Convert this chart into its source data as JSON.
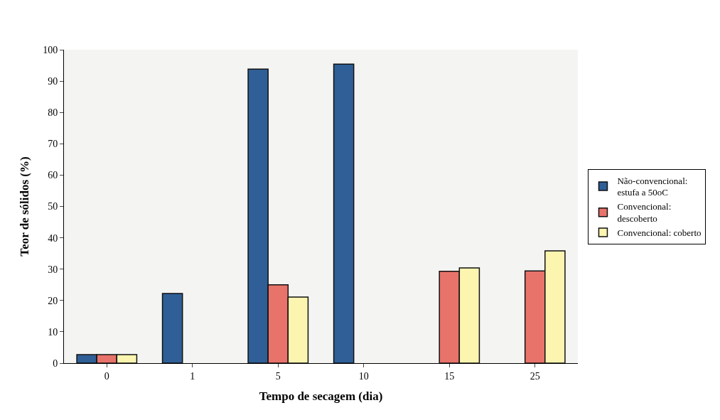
{
  "chart_data": {
    "type": "bar",
    "xlabel": "Tempo de secagem (dia)",
    "ylabel": "Teor de sólidos (%)",
    "categories": [
      "0",
      "1",
      "5",
      "10",
      "15",
      "25"
    ],
    "series": [
      {
        "name": "Não-convencional: estufa a 50oC",
        "color": "#2f5f96",
        "values": [
          2.7,
          22.2,
          93.8,
          95.4,
          null,
          null
        ]
      },
      {
        "name": "Convencional: descoberto",
        "color": "#e8736b",
        "values": [
          2.7,
          null,
          25.0,
          null,
          29.3,
          29.4
        ]
      },
      {
        "name": "Convencional: coberto",
        "color": "#fbf5b0",
        "values": [
          2.7,
          null,
          21.1,
          null,
          30.4,
          35.8
        ]
      }
    ],
    "ylim": [
      0,
      100
    ],
    "yticks": [
      0,
      10,
      20,
      30,
      40,
      50,
      60,
      70,
      80,
      90,
      100
    ],
    "grid": false,
    "legend": "right"
  }
}
